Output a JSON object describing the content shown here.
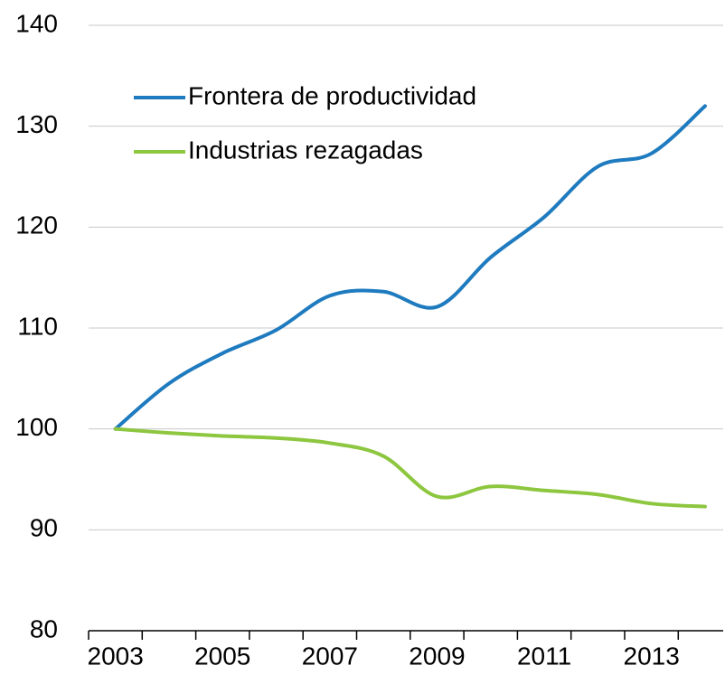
{
  "chart_data": {
    "type": "line",
    "categories": [
      "2003",
      null,
      "2005",
      null,
      "2007",
      null,
      "2009",
      null,
      "2011",
      null,
      "2013",
      null
    ],
    "series": [
      {
        "name": "Frontera de productividad",
        "color": "#1f7bbf",
        "values": [
          100,
          104.5,
          107.5,
          109.8,
          113.2,
          113.6,
          112.1,
          117,
          121,
          126,
          127.3,
          132
        ]
      },
      {
        "name": "Industrias rezagadas",
        "color": "#8dc63f",
        "values": [
          100,
          99.6,
          99.3,
          99.1,
          98.6,
          97.3,
          93.3,
          94.3,
          93.9,
          93.5,
          92.6,
          92.3
        ]
      }
    ],
    "ylim": [
      80,
      140
    ],
    "yticks": [
      80,
      90,
      100,
      110,
      120,
      130,
      140
    ],
    "grid": true,
    "legend": "upper left"
  }
}
